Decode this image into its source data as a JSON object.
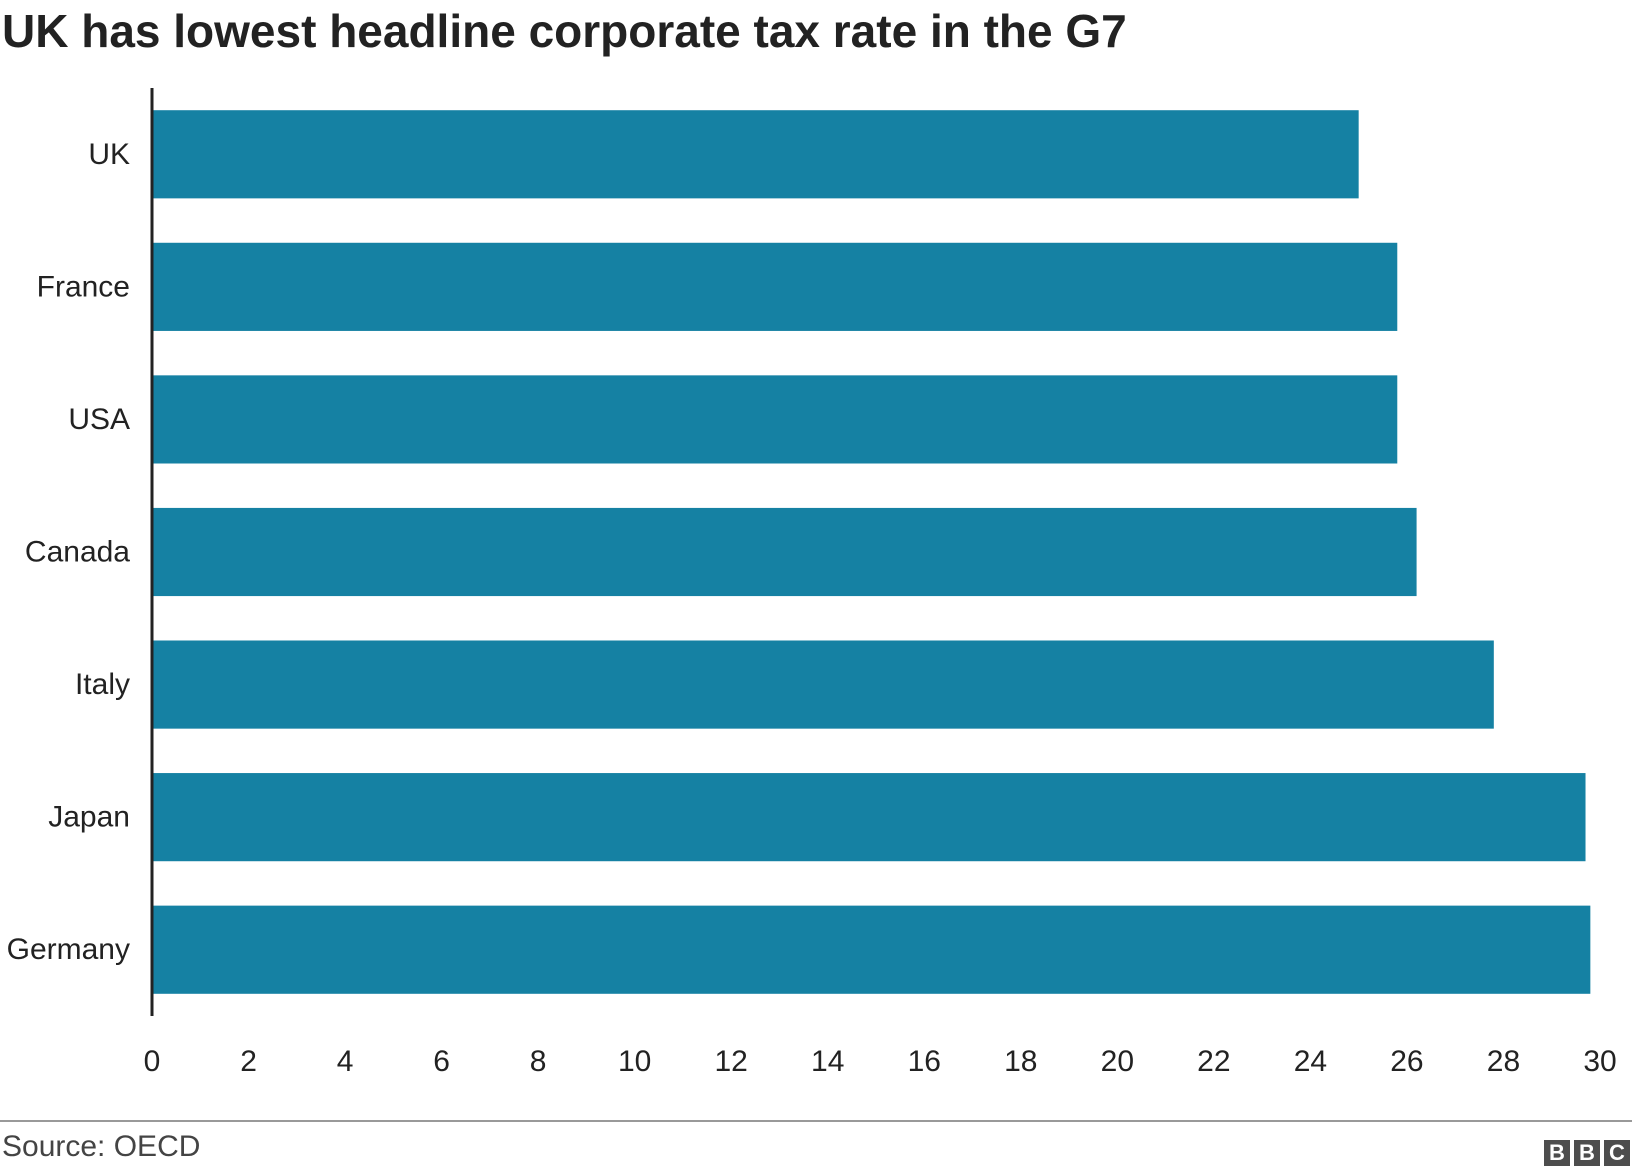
{
  "chart_data": {
    "type": "bar",
    "orientation": "horizontal",
    "title": "UK has lowest headline corporate tax rate in the G7",
    "categories": [
      "UK",
      "France",
      "USA",
      "Canada",
      "Italy",
      "Japan",
      "Germany"
    ],
    "values": [
      25.0,
      25.8,
      25.8,
      26.2,
      27.8,
      29.7,
      29.8
    ],
    "xlim": [
      0,
      30
    ],
    "x_ticks": [
      0,
      2,
      4,
      6,
      8,
      10,
      12,
      14,
      16,
      18,
      20,
      22,
      24,
      26,
      28,
      30
    ],
    "bar_color": "#1581a3",
    "grid": false,
    "xlabel": "",
    "ylabel": ""
  },
  "footer": {
    "source": "Source: OECD",
    "logo": [
      "B",
      "B",
      "C"
    ]
  }
}
